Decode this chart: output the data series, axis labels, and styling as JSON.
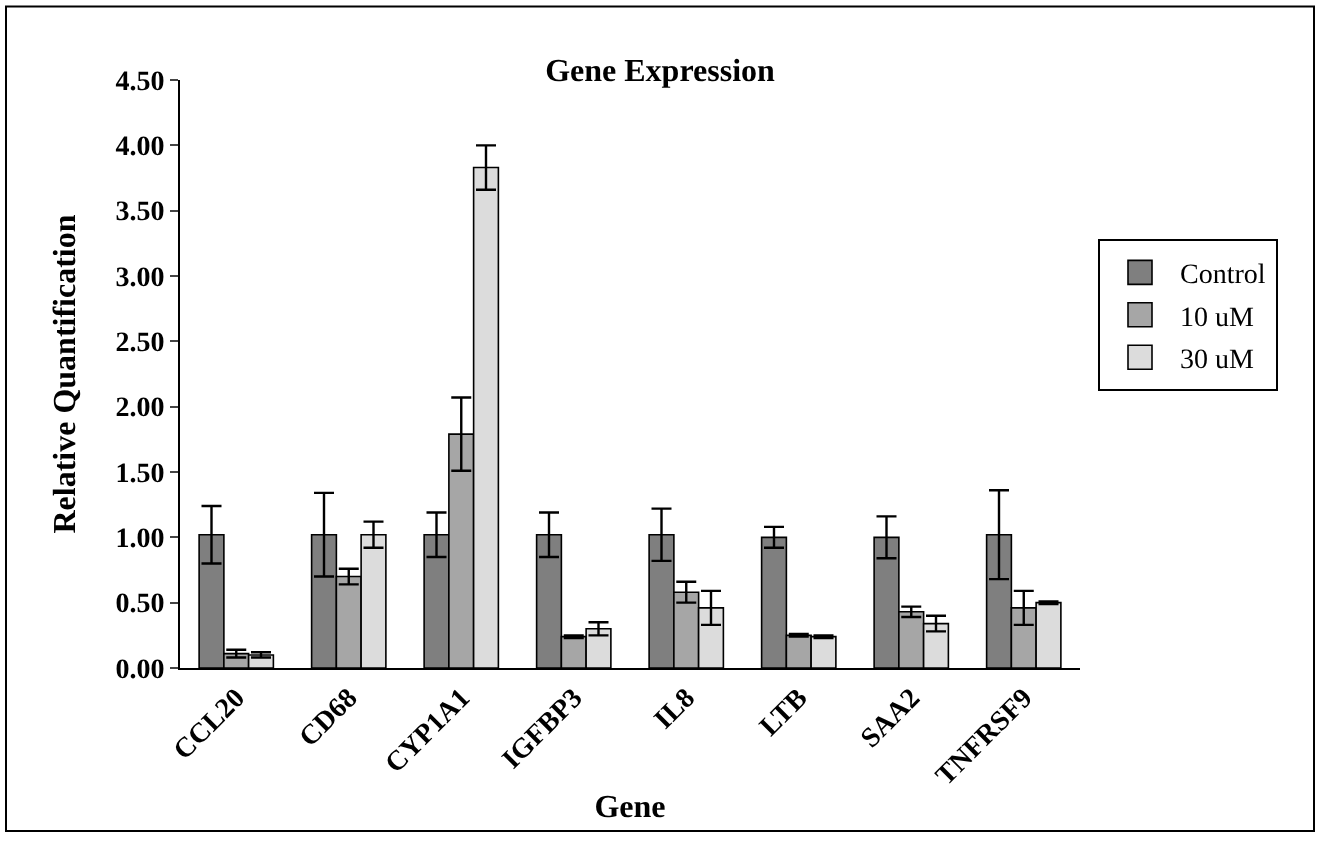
{
  "chart_data": {
    "type": "bar",
    "title": "Gene Expression",
    "xlabel": "Gene",
    "ylabel": "Relative Quantification",
    "categories": [
      "CCL20",
      "CD68",
      "CYP1A1",
      "IGFBP3",
      "IL8",
      "LTB",
      "SAA2",
      "TNFRSF9"
    ],
    "series": [
      {
        "name": "Control",
        "color": "#7f7f7f",
        "values": [
          1.02,
          1.02,
          1.02,
          1.02,
          1.02,
          1.0,
          1.0,
          1.02
        ],
        "errors": [
          0.22,
          0.32,
          0.17,
          0.17,
          0.2,
          0.08,
          0.16,
          0.34
        ]
      },
      {
        "name": "10 uM",
        "color": "#a6a6a6",
        "values": [
          0.11,
          0.7,
          1.79,
          0.24,
          0.58,
          0.25,
          0.43,
          0.46
        ],
        "errors": [
          0.03,
          0.06,
          0.28,
          0.01,
          0.08,
          0.01,
          0.04,
          0.13
        ]
      },
      {
        "name": "30 uM",
        "color": "#dcdcdc",
        "values": [
          0.1,
          1.02,
          3.83,
          0.3,
          0.46,
          0.24,
          0.34,
          0.5
        ],
        "errors": [
          0.02,
          0.1,
          0.17,
          0.05,
          0.13,
          0.01,
          0.06,
          0.01
        ]
      }
    ],
    "ylim": [
      0,
      4.5
    ],
    "yticks": [
      {
        "value": 0,
        "label": "0.00"
      },
      {
        "value": 0.5,
        "label": "0.50"
      },
      {
        "value": 1,
        "label": "1.00"
      },
      {
        "value": 1.5,
        "label": "1.50"
      },
      {
        "value": 2,
        "label": "2.00"
      },
      {
        "value": 2.5,
        "label": "2.50"
      },
      {
        "value": 3,
        "label": "3.00"
      },
      {
        "value": 3.5,
        "label": "3.50"
      },
      {
        "value": 4,
        "label": "4.00"
      },
      {
        "value": 4.5,
        "label": "4.50"
      }
    ],
    "grid": false,
    "legend": "right"
  }
}
